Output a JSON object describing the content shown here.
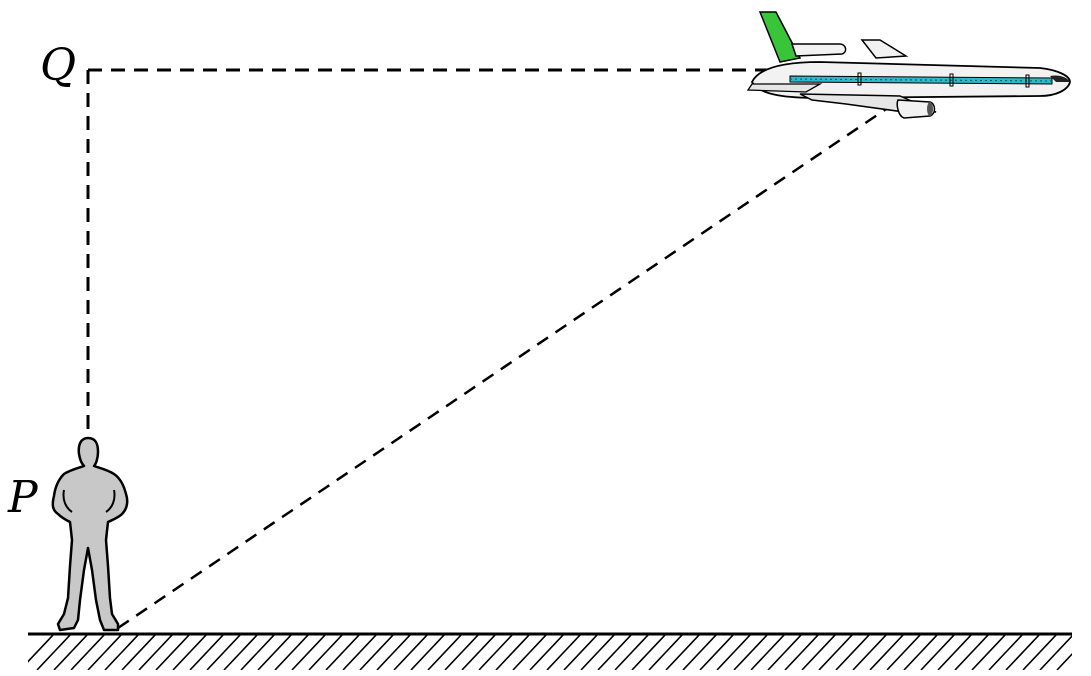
{
  "labels": {
    "q": "Q",
    "p": "P"
  },
  "figure": {
    "elements": [
      "person",
      "airplane",
      "ground",
      "vertical-dashed-line",
      "horizontal-dashed-line",
      "sight-line"
    ],
    "colors": {
      "line": "#000000",
      "person_fill": "#c8c8c8",
      "plane_body": "#f2f2f2",
      "plane_tail": "#39c43a",
      "plane_stripe": "#2fb8c8",
      "background": "#ffffff"
    },
    "icons": [
      "person-icon",
      "airplane-icon",
      "ground-hatch-icon"
    ]
  }
}
